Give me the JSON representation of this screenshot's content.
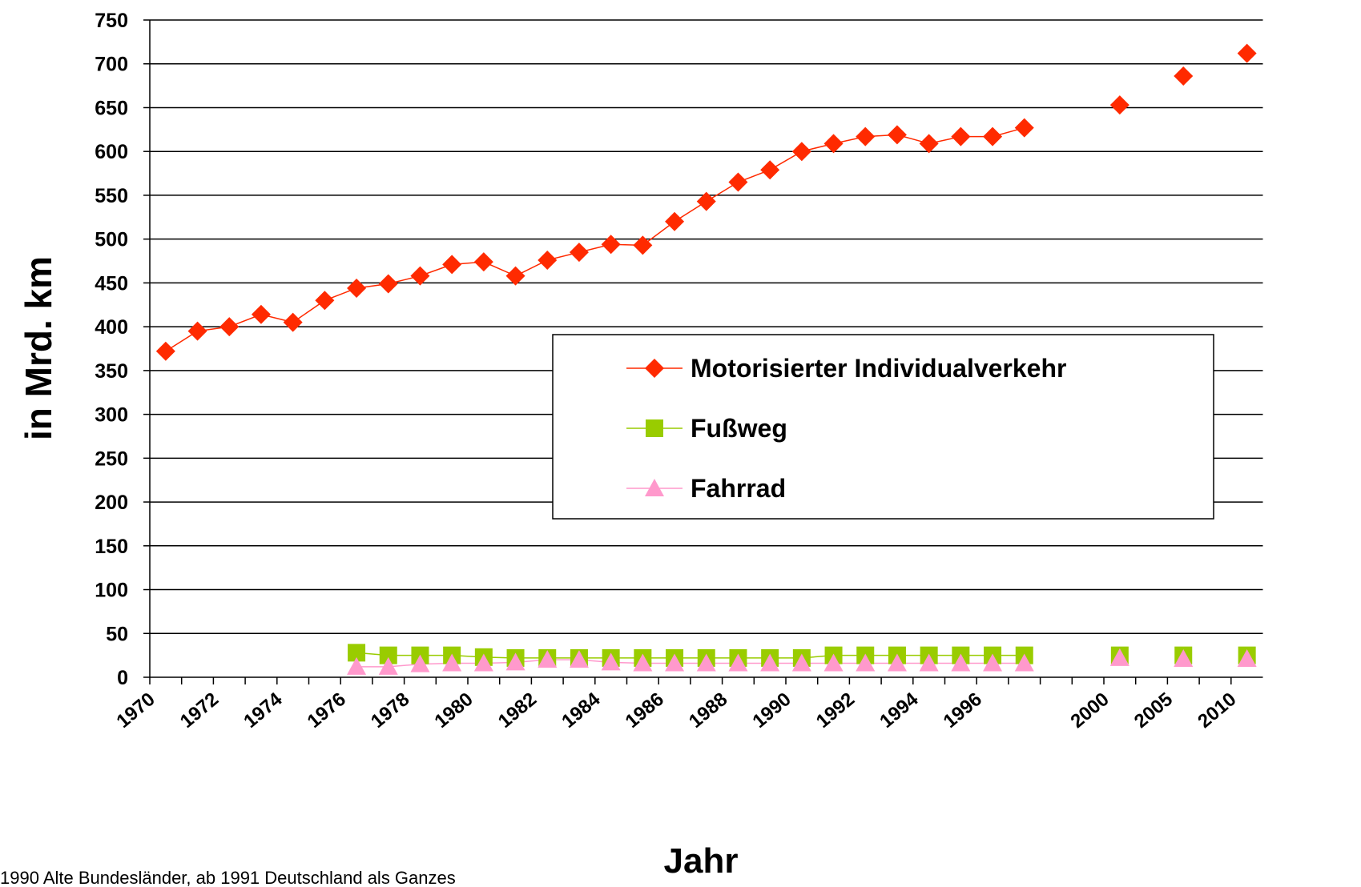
{
  "chart_data": {
    "type": "line",
    "y_label": "in Mrd. km",
    "x_label": "Jahr",
    "footnote": "1990 Alte Bundesländer, ab 1991 Deutschland als Ganzes",
    "categories": [
      "1970",
      null,
      "1972",
      null,
      "1974",
      null,
      "1976",
      null,
      "1978",
      null,
      "1980",
      null,
      "1982",
      null,
      "1984",
      null,
      "1986",
      null,
      "1988",
      null,
      "1990",
      null,
      "1992",
      null,
      "1994",
      null,
      "1996",
      null,
      null,
      null,
      "2000",
      null,
      "2005",
      null,
      "2010"
    ],
    "series": [
      {
        "name": "Motorisierter Individualverkehr",
        "color": "#ff2a00",
        "marker": "diamond",
        "values": [
          372,
          395,
          400,
          414,
          405,
          430,
          444,
          449,
          458,
          471,
          474,
          458,
          476,
          485,
          494,
          493,
          520,
          543,
          565,
          579,
          600,
          609,
          617,
          619,
          609,
          617,
          617,
          627,
          null,
          null,
          653,
          null,
          686,
          null,
          712
        ]
      },
      {
        "name": "Fußweg",
        "color": "#99cc00",
        "marker": "square",
        "values": [
          null,
          null,
          null,
          null,
          null,
          null,
          28,
          25,
          25,
          25,
          23,
          22,
          22,
          22,
          22,
          22,
          22,
          22,
          22,
          22,
          22,
          25,
          25,
          25,
          25,
          25,
          25,
          25,
          null,
          null,
          25,
          null,
          25,
          null,
          25
        ]
      },
      {
        "name": "Fahrrad",
        "color": "#ff99cc",
        "marker": "triangle",
        "values": [
          null,
          null,
          null,
          null,
          null,
          null,
          12,
          12,
          15,
          16,
          16,
          17,
          20,
          20,
          17,
          16,
          16,
          16,
          16,
          16,
          16,
          16,
          16,
          16,
          16,
          16,
          16,
          16,
          null,
          null,
          22,
          null,
          21,
          null,
          21
        ]
      }
    ],
    "ylim": [
      0,
      750
    ],
    "yticks": [
      0,
      50,
      100,
      150,
      200,
      250,
      300,
      350,
      400,
      450,
      500,
      550,
      600,
      650,
      700,
      750
    ],
    "grid": true,
    "legend_position": "right"
  }
}
